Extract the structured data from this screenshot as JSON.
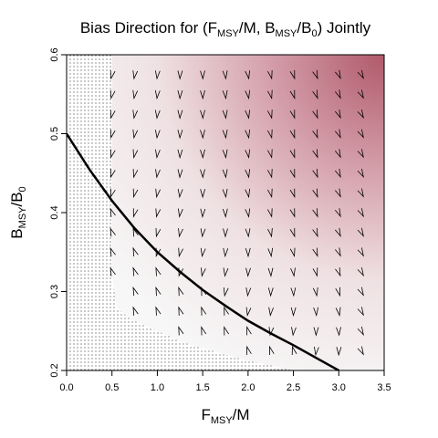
{
  "chart_data": {
    "type": "vector-field",
    "title": {
      "prefix": "Bias Direction for (F",
      "sub1": "MSY",
      "mid1": "/M, B",
      "sub2": "MSY",
      "mid2": "/B",
      "sub3": "0",
      "suffix": ") Jointly"
    },
    "xlabel": {
      "main": "F",
      "sub": "MSY",
      "rest": "/M"
    },
    "ylabel": {
      "main": "B",
      "sub": "MSY",
      "rest": "/B",
      "sub2": "0"
    },
    "xlim": [
      0,
      3.5
    ],
    "ylim": [
      0.2,
      0.6
    ],
    "x_ticks": [
      "0.0",
      "0.5",
      "1.0",
      "1.5",
      "2.0",
      "2.5",
      "3.0",
      "3.5"
    ],
    "y_ticks": [
      "0.2",
      "0.3",
      "0.4",
      "0.5",
      "0.6"
    ],
    "curve": {
      "description_values": "boundary curve through data points",
      "x": [
        0.0,
        0.25,
        0.5,
        0.75,
        1.0,
        1.25,
        1.5,
        1.75,
        2.0,
        2.25,
        2.5,
        2.75,
        3.0
      ],
      "y": [
        0.5,
        0.455,
        0.415,
        0.38,
        0.35,
        0.325,
        0.302,
        0.282,
        0.263,
        0.247,
        0.232,
        0.216,
        0.2
      ]
    },
    "infeasible_region": {
      "pattern": "dots",
      "boundary_x": [
        0.5,
        0.5,
        0.55,
        0.7,
        0.9,
        1.1,
        1.3,
        1.5,
        1.7,
        1.9,
        2.1,
        2.3,
        2.5
      ],
      "boundary_y": [
        0.6,
        0.32,
        0.28,
        0.265,
        0.255,
        0.245,
        0.235,
        0.228,
        0.222,
        0.215,
        0.21,
        0.205,
        0.2
      ]
    },
    "shading": {
      "low_color": "#f7f7f7",
      "high_color": "#b05a6b"
    },
    "arrow_grid": {
      "x_step": 0.25,
      "y_step": 0.025
    }
  }
}
